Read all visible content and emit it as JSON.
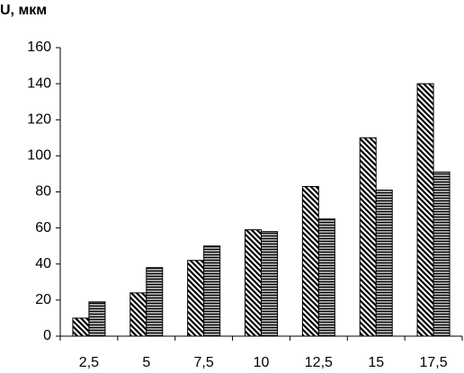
{
  "chart_data": {
    "type": "bar",
    "title": "U, мкм",
    "categories": [
      "2,5",
      "5",
      "7,5",
      "10",
      "12,5",
      "15",
      "17,5"
    ],
    "series": [
      {
        "color": "#000000",
        "pattern": "diagonal",
        "values": [
          10,
          24,
          42,
          59,
          83,
          110,
          140
        ]
      },
      {
        "color": "#000000",
        "pattern": "horizontal",
        "values": [
          19,
          38,
          50,
          58,
          65,
          81,
          91
        ]
      }
    ],
    "ylim": [
      0,
      160
    ],
    "yticks": [
      0,
      20,
      40,
      60,
      80,
      100,
      120,
      140,
      160
    ],
    "grid": false
  }
}
